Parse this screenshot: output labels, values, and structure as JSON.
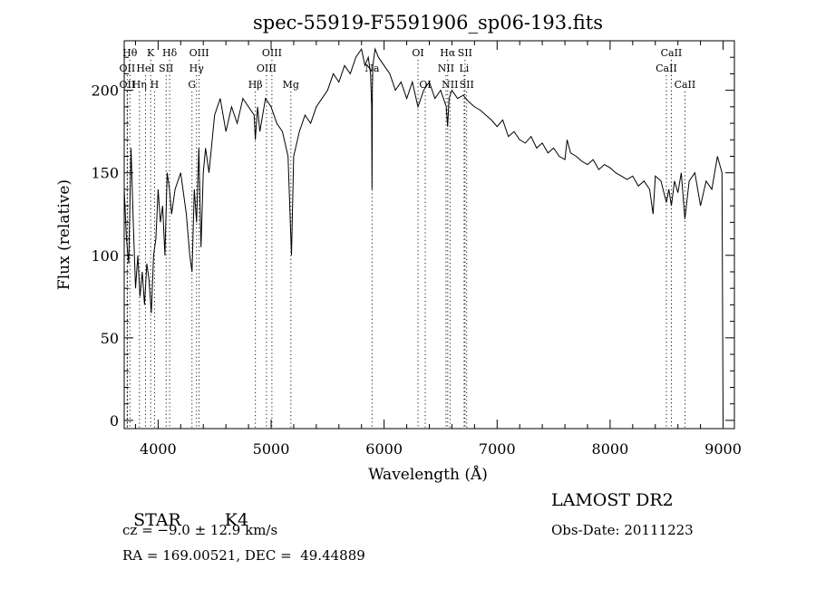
{
  "chart_data": {
    "type": "line",
    "title": "spec-55919-F5591906_sp06-193.fits",
    "xlabel": "Wavelength (Å)",
    "ylabel": "Flux (relative)",
    "xlim": [
      3700,
      9100
    ],
    "ylim": [
      -5,
      230
    ],
    "x_ticks": [
      4000,
      5000,
      6000,
      7000,
      8000,
      9000
    ],
    "y_ticks": [
      0,
      50,
      100,
      150,
      200
    ],
    "grid": false,
    "series": [
      {
        "x": [
          3700,
          3720,
          3740,
          3760,
          3780,
          3800,
          3820,
          3840,
          3860,
          3880,
          3900,
          3920,
          3940,
          3960,
          3980,
          4000,
          4020,
          4040,
          4060,
          4080,
          4100,
          4120,
          4150,
          4200,
          4250,
          4280,
          4300,
          4320,
          4340,
          4360,
          4380,
          4400,
          4420,
          4450,
          4500,
          4550,
          4600,
          4650,
          4700,
          4750,
          4800,
          4850,
          4860,
          4880,
          4900,
          4950,
          5000,
          5050,
          5100,
          5150,
          5170,
          5180,
          5190,
          5200,
          5250,
          5300,
          5350,
          5400,
          5450,
          5500,
          5550,
          5600,
          5650,
          5700,
          5750,
          5800,
          5830,
          5860,
          5880,
          5890,
          5893,
          5896,
          5900,
          5920,
          5950,
          6000,
          6050,
          6100,
          6150,
          6200,
          6250,
          6300,
          6350,
          6400,
          6450,
          6500,
          6550,
          6562,
          6575,
          6600,
          6650,
          6700,
          6750,
          6800,
          6850,
          6900,
          6950,
          7000,
          7050,
          7100,
          7150,
          7200,
          7250,
          7300,
          7350,
          7400,
          7450,
          7500,
          7550,
          7600,
          7620,
          7650,
          7700,
          7750,
          7800,
          7850,
          7900,
          7950,
          8000,
          8050,
          8100,
          8150,
          8200,
          8250,
          8300,
          8350,
          8380,
          8400,
          8450,
          8498,
          8520,
          8542,
          8570,
          8600,
          8630,
          8662,
          8700,
          8750,
          8800,
          8850,
          8900,
          8950,
          8990,
          9000
        ],
        "y": [
          140,
          110,
          95,
          165,
          120,
          80,
          100,
          75,
          90,
          70,
          95,
          85,
          65,
          100,
          110,
          140,
          120,
          130,
          100,
          150,
          140,
          125,
          140,
          150,
          125,
          100,
          90,
          140,
          120,
          165,
          105,
          150,
          165,
          150,
          185,
          195,
          175,
          190,
          180,
          195,
          190,
          185,
          170,
          190,
          175,
          195,
          190,
          180,
          175,
          160,
          120,
          100,
          130,
          160,
          175,
          185,
          180,
          190,
          195,
          200,
          210,
          205,
          215,
          210,
          220,
          225,
          215,
          220,
          210,
          190,
          140,
          200,
          215,
          225,
          220,
          215,
          210,
          200,
          205,
          195,
          205,
          190,
          200,
          205,
          195,
          200,
          190,
          178,
          195,
          200,
          195,
          197,
          193,
          190,
          188,
          185,
          182,
          178,
          182,
          172,
          175,
          170,
          168,
          172,
          165,
          168,
          162,
          165,
          160,
          158,
          170,
          162,
          160,
          157,
          155,
          158,
          152,
          155,
          153,
          150,
          148,
          146,
          148,
          142,
          145,
          140,
          125,
          148,
          145,
          132,
          140,
          130,
          145,
          138,
          150,
          122,
          145,
          150,
          130,
          145,
          140,
          160,
          150,
          0
        ],
        "color": "#000000"
      }
    ],
    "line_markers": [
      {
        "wavelength": 3750,
        "tier": 1,
        "label": "Hθ"
      },
      {
        "wavelength": 3727,
        "tier": 2,
        "label": "OII"
      },
      {
        "wavelength": 3727,
        "tier": 3,
        "label": "OII"
      },
      {
        "wavelength": 3835,
        "tier": 3,
        "label": "Hη"
      },
      {
        "wavelength": 3934,
        "tier": 1,
        "label": "K"
      },
      {
        "wavelength": 3889,
        "tier": 2,
        "label": "HeI"
      },
      {
        "wavelength": 3968,
        "tier": 3,
        "label": "H"
      },
      {
        "wavelength": 4071,
        "tier": 2,
        "label": "SII"
      },
      {
        "wavelength": 4102,
        "tier": 1,
        "label": "Hδ"
      },
      {
        "wavelength": 4300,
        "tier": 3,
        "label": "G"
      },
      {
        "wavelength": 4340,
        "tier": 2,
        "label": "Hγ"
      },
      {
        "wavelength": 4363,
        "tier": 1,
        "label": "OIII"
      },
      {
        "wavelength": 4861,
        "tier": 3,
        "label": "Hβ"
      },
      {
        "wavelength": 4959,
        "tier": 2,
        "label": "OIII"
      },
      {
        "wavelength": 5007,
        "tier": 1,
        "label": "OIII"
      },
      {
        "wavelength": 5175,
        "tier": 3,
        "label": "Mg"
      },
      {
        "wavelength": 5893,
        "tier": 2,
        "label": "Na"
      },
      {
        "wavelength": 6300,
        "tier": 1,
        "label": "OI"
      },
      {
        "wavelength": 6364,
        "tier": 3,
        "label": "OI"
      },
      {
        "wavelength": 6548,
        "tier": 2,
        "label": "NII"
      },
      {
        "wavelength": 6563,
        "tier": 1,
        "label": "Hα"
      },
      {
        "wavelength": 6583,
        "tier": 3,
        "label": "NII"
      },
      {
        "wavelength": 6708,
        "tier": 2,
        "label": "Li"
      },
      {
        "wavelength": 6716,
        "tier": 1,
        "label": "SII"
      },
      {
        "wavelength": 6731,
        "tier": 3,
        "label": "SII"
      },
      {
        "wavelength": 8498,
        "tier": 2,
        "label": "CaII"
      },
      {
        "wavelength": 8542,
        "tier": 1,
        "label": "CaII"
      },
      {
        "wavelength": 8662,
        "tier": 3,
        "label": "CaII"
      }
    ]
  },
  "info": {
    "class_label": "STAR",
    "subclass": "K4",
    "redshift_line": "cz = −9.0 ± 12.9 km/s",
    "coords_line": "RA = 169.00521, DEC =  49.44889",
    "survey": "LAMOST DR2",
    "obs_date_line": "Obs-Date: 20111223"
  }
}
